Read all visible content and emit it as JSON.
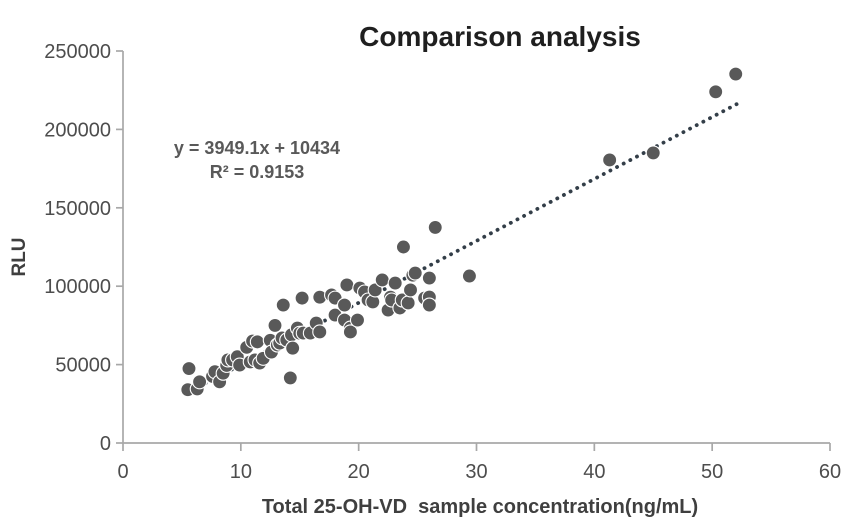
{
  "chart_data": {
    "type": "scatter",
    "title": "Comparison analysis",
    "annotation": {
      "line1": "y = 3949.1x + 10434",
      "line2": "R² = 0.9153"
    },
    "xlabel": "Total 25-OH-VD  sample concentration(ng/mL)",
    "ylabel": "RLU",
    "xlim": [
      0,
      60
    ],
    "ylim": [
      0,
      250000
    ],
    "x_ticks": [
      0,
      10,
      20,
      30,
      40,
      50,
      60
    ],
    "y_ticks": [
      0,
      50000,
      100000,
      150000,
      200000,
      250000
    ],
    "grid": false,
    "legend": "none",
    "points": [
      [
        5.5,
        34000
      ],
      [
        5.6,
        47500
      ],
      [
        6.3,
        34500
      ],
      [
        6.5,
        39000
      ],
      [
        7.6,
        42500
      ],
      [
        7.8,
        45500
      ],
      [
        8.2,
        39000
      ],
      [
        8.5,
        44500
      ],
      [
        8.8,
        49500
      ],
      [
        8.9,
        53000
      ],
      [
        9.3,
        53000
      ],
      [
        9.7,
        55000
      ],
      [
        9.9,
        49700
      ],
      [
        10.5,
        61000
      ],
      [
        10.8,
        51700
      ],
      [
        11.0,
        65000
      ],
      [
        11.2,
        53000
      ],
      [
        11.4,
        64500
      ],
      [
        11.6,
        51000
      ],
      [
        11.9,
        54000
      ],
      [
        12.5,
        65500
      ],
      [
        12.6,
        58000
      ],
      [
        12.9,
        75000
      ],
      [
        13.1,
        62500
      ],
      [
        13.3,
        63700
      ],
      [
        13.5,
        67000
      ],
      [
        13.6,
        88000
      ],
      [
        13.9,
        65700
      ],
      [
        14.2,
        41500
      ],
      [
        14.3,
        69000
      ],
      [
        14.4,
        60500
      ],
      [
        14.8,
        73300
      ],
      [
        15.0,
        70000
      ],
      [
        15.2,
        92400
      ],
      [
        15.3,
        70100
      ],
      [
        15.9,
        70100
      ],
      [
        16.4,
        76500
      ],
      [
        16.7,
        70800
      ],
      [
        16.7,
        93000
      ],
      [
        17.7,
        94400
      ],
      [
        18.0,
        92400
      ],
      [
        18.0,
        81600
      ],
      [
        18.8,
        88000
      ],
      [
        18.8,
        78400
      ],
      [
        19.0,
        100800
      ],
      [
        19.3,
        73300
      ],
      [
        19.3,
        70800
      ],
      [
        19.9,
        78400
      ],
      [
        20.1,
        98800
      ],
      [
        20.5,
        96300
      ],
      [
        20.8,
        91200
      ],
      [
        21.2,
        90000
      ],
      [
        21.4,
        97600
      ],
      [
        22.0,
        104000
      ],
      [
        22.5,
        84800
      ],
      [
        22.7,
        93000
      ],
      [
        22.8,
        91200
      ],
      [
        23.1,
        102000
      ],
      [
        23.5,
        86100
      ],
      [
        23.7,
        91200
      ],
      [
        23.8,
        125000
      ],
      [
        24.2,
        89300
      ],
      [
        24.4,
        97600
      ],
      [
        24.6,
        107000
      ],
      [
        24.8,
        108400
      ],
      [
        25.6,
        92400
      ],
      [
        26.0,
        105200
      ],
      [
        26.0,
        93100
      ],
      [
        26.0,
        88000
      ],
      [
        26.5,
        137500
      ],
      [
        29.4,
        106500
      ],
      [
        41.3,
        180500
      ],
      [
        45.0,
        185000
      ],
      [
        50.3,
        224000
      ],
      [
        52.0,
        235300
      ]
    ],
    "trendline": {
      "slope": 3949.1,
      "intercept": 10434,
      "r_squared": 0.9153,
      "x_start": 5.3,
      "x_end": 52.3,
      "style": "dotted"
    },
    "colors": {
      "marker": "#595959",
      "marker_outline": "#ffffff",
      "trendline": "#333e48",
      "axis": "#a8a8a8",
      "tick_label": "#4d4d4d",
      "axis_title": "#3f3f3f",
      "annotation": "#595959",
      "title": "#1f1f1f",
      "background": "#ffffff"
    }
  }
}
